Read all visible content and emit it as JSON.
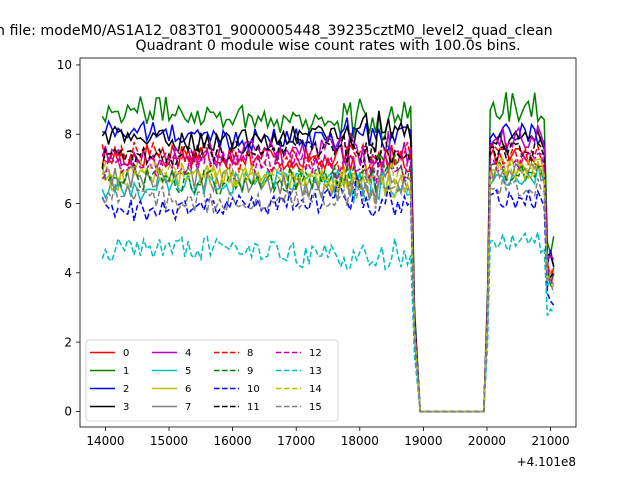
{
  "suptitle": "n file: modeM0/AS1A12_083T01_9000005448_39235cztM0_level2_quad_clean",
  "chart_data": {
    "type": "line",
    "title": "Quadrant 0 module wise count rates with 100.0s bins.",
    "xlabel": "",
    "ylabel": "",
    "x_offset_label": "+4.101e8",
    "xlim": [
      13600,
      21400
    ],
    "ylim": [
      -0.45,
      10.2
    ],
    "xticks": [
      14000,
      15000,
      16000,
      17000,
      18000,
      19000,
      20000,
      21000
    ],
    "xtick_labels": [
      "14000",
      "15000",
      "16000",
      "17000",
      "18000",
      "19000",
      "20000",
      "21000"
    ],
    "yticks": [
      0,
      2,
      4,
      6,
      8,
      10
    ],
    "ytick_labels": [
      "0",
      "2",
      "4",
      "6",
      "8",
      "10"
    ],
    "grid": false,
    "legend_position": "lower-left",
    "legend_columns": 4,
    "segments": [
      {
        "start": 13950,
        "end": 18800
      },
      {
        "start": 20050,
        "end": 21050
      }
    ],
    "gap": {
      "drop_start": 18800,
      "zero_start": 18950,
      "zero_end": 19950,
      "rise_end": 20050
    },
    "series": [
      {
        "name": "0",
        "color": "#ff0000",
        "dash": "solid",
        "mean": 7.3,
        "amp": 0.38,
        "mean2": 7.4,
        "amp2": 0.35
      },
      {
        "name": "1",
        "color": "#008000",
        "dash": "solid",
        "mean": 8.55,
        "amp": 0.4,
        "mean2": 8.8,
        "amp2": 0.45
      },
      {
        "name": "2",
        "color": "#0000ff",
        "dash": "solid",
        "mean": 8.0,
        "amp": 0.32,
        "mean2": 8.0,
        "amp2": 0.3
      },
      {
        "name": "3",
        "color": "#000000",
        "dash": "solid",
        "mean": 7.95,
        "amp": 0.3,
        "mean2": 7.8,
        "amp2": 0.3
      },
      {
        "name": "4",
        "color": "#bf00bf",
        "dash": "solid",
        "mean": 7.45,
        "amp": 0.35,
        "mean2": 7.9,
        "amp2": 0.35
      },
      {
        "name": "5",
        "color": "#00bfbf",
        "dash": "solid",
        "mean": 6.5,
        "amp": 0.35,
        "mean2": 6.8,
        "amp2": 0.3
      },
      {
        "name": "6",
        "color": "#bfbf00",
        "dash": "solid",
        "mean": 6.7,
        "amp": 0.35,
        "mean2": 7.0,
        "amp2": 0.3
      },
      {
        "name": "7",
        "color": "#808080",
        "dash": "solid",
        "mean": 6.6,
        "amp": 0.35,
        "mean2": 6.9,
        "amp2": 0.3
      },
      {
        "name": "8",
        "color": "#ff0000",
        "dash": "dashed",
        "mean": 7.35,
        "amp": 0.35,
        "mean2": 7.4,
        "amp2": 0.3
      },
      {
        "name": "9",
        "color": "#008000",
        "dash": "dashed",
        "mean": 6.75,
        "amp": 0.35,
        "mean2": 6.9,
        "amp2": 0.3
      },
      {
        "name": "10",
        "color": "#0000ff",
        "dash": "dashed",
        "mean": 5.95,
        "amp": 0.35,
        "mean2": 6.1,
        "amp2": 0.3
      },
      {
        "name": "11",
        "color": "#000000",
        "dash": "dashed",
        "mean": 7.45,
        "amp": 0.3,
        "mean2": 7.5,
        "amp2": 0.3
      },
      {
        "name": "12",
        "color": "#bf00bf",
        "dash": "dashed",
        "mean": 7.1,
        "amp": 0.35,
        "mean2": 7.2,
        "amp2": 0.3
      },
      {
        "name": "13",
        "color": "#00bfbf",
        "dash": "dashed",
        "mean": 4.6,
        "amp": 0.35,
        "mean2": 4.9,
        "amp2": 0.35
      },
      {
        "name": "14",
        "color": "#bfbf00",
        "dash": "dashed",
        "mean": 6.85,
        "amp": 0.3,
        "mean2": 7.0,
        "amp2": 0.3
      },
      {
        "name": "15",
        "color": "#808080",
        "dash": "dashed",
        "mean": 6.2,
        "amp": 0.35,
        "mean2": 6.5,
        "amp2": 0.3
      }
    ]
  }
}
